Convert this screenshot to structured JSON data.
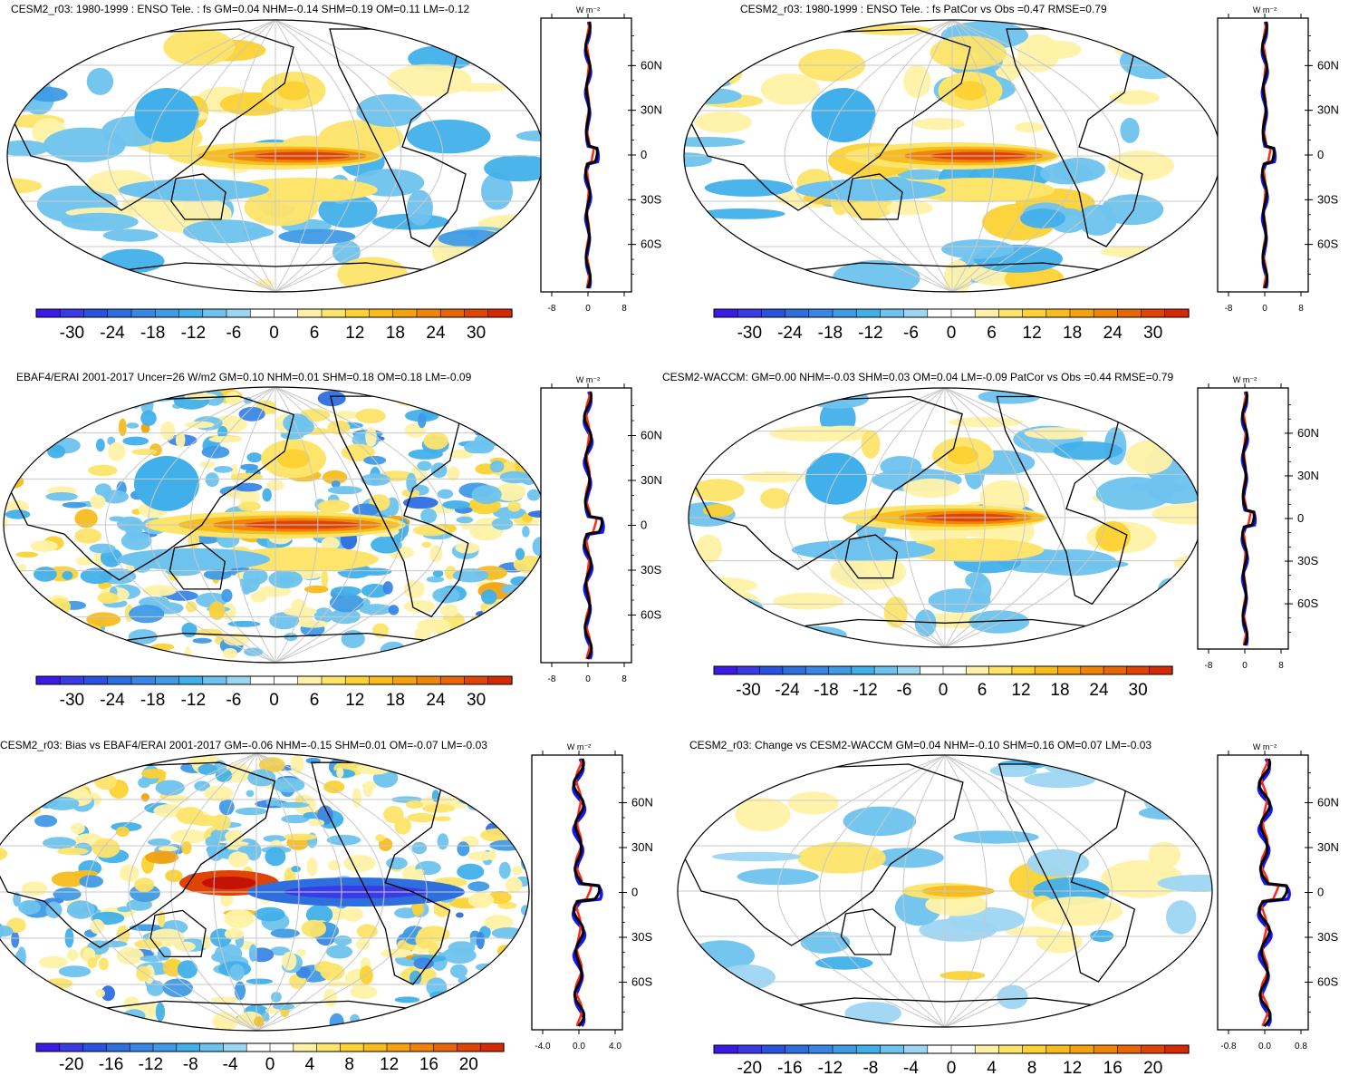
{
  "colors": {
    "negative_scale": [
      "#3a1ae6",
      "#3a3ae6",
      "#2a52e0",
      "#2e6fe0",
      "#3a86e6",
      "#3f9be6",
      "#41b0ea",
      "#6ec3ee",
      "#9dd6f2"
    ],
    "positive_scale": [
      "#fff2a8",
      "#fde46a",
      "#fcd234",
      "#f8bd1c",
      "#f4a20e",
      "#ef8409",
      "#e86607",
      "#df4406",
      "#d62a05",
      "#c41206"
    ],
    "ocean_red": "#ff2a1a",
    "line_blue": "#1414ff",
    "line_black": "#000000",
    "grid": "#c8c8c8"
  },
  "panels": [
    {
      "id": "p1",
      "title": "CESM2_r03: 1980-1999 : ENSO Tele. : fs GM=0.04 NHM=-0.14 SHM=0.19 OM=0.11 LM=-0.12",
      "colorbar_labels": [
        "-30",
        "-24",
        "-18",
        "-12",
        "-6",
        "0",
        "6",
        "12",
        "18",
        "24",
        "30"
      ],
      "zonal_x_ticks": [
        "-8",
        "0",
        "8"
      ],
      "zonal_y_ticks": [
        "60N",
        "30N",
        "0",
        "30S",
        "60S"
      ],
      "zonal_unit": "W m-2"
    },
    {
      "id": "p2",
      "title": "CESM2_r03: 1980-1999 : ENSO Tele. : fs PatCor vs Obs =0.47 RMSE=0.79",
      "colorbar_labels": [
        "-30",
        "-24",
        "-18",
        "-12",
        "-6",
        "0",
        "6",
        "12",
        "18",
        "24",
        "30"
      ],
      "zonal_x_ticks": [
        "-8",
        "0",
        "8"
      ],
      "zonal_y_ticks": [
        "60N",
        "30N",
        "0",
        "30S",
        "60S"
      ],
      "zonal_unit": "W m-2"
    },
    {
      "id": "p3",
      "title": "EBAF4/ERAI 2001-2017 Uncer=26 W/m2 GM=0.10 NHM=0.01 SHM=0.18 OM=0.18 LM=-0.09",
      "colorbar_labels": [
        "-30",
        "-24",
        "-18",
        "-12",
        "-6",
        "0",
        "6",
        "12",
        "18",
        "24",
        "30"
      ],
      "zonal_x_ticks": [
        "-8",
        "0",
        "8"
      ],
      "zonal_y_ticks": [
        "60N",
        "30N",
        "0",
        "30S",
        "60S"
      ],
      "zonal_unit": "W m-2"
    },
    {
      "id": "p4",
      "title": "CESM2-WACCM: GM=0.00 NHM=-0.03 SHM=0.03 OM=0.04 LM=-0.09 PatCor vs Obs =0.44 RMSE=0.79",
      "colorbar_labels": [
        "-30",
        "-24",
        "-18",
        "-12",
        "-6",
        "0",
        "6",
        "12",
        "18",
        "24",
        "30"
      ],
      "zonal_x_ticks": [
        "-8",
        "0",
        "8"
      ],
      "zonal_y_ticks": [
        "60N",
        "30N",
        "0",
        "30S",
        "60S"
      ],
      "zonal_unit": "W m-2"
    },
    {
      "id": "p5",
      "title": "CESM2_r03: Bias vs EBAF4/ERAI 2001-2017 GM=-0.06 NHM=-0.15 SHM=0.01 OM=-0.07 LM=-0.03",
      "colorbar_labels": [
        "-20",
        "-16",
        "-12",
        "-8",
        "-4",
        "0",
        "4",
        "8",
        "12",
        "16",
        "20"
      ],
      "zonal_x_ticks": [
        "-4.0",
        "0.0",
        "4.0"
      ],
      "zonal_y_ticks": [
        "60N",
        "30N",
        "0",
        "30S",
        "60S"
      ],
      "zonal_unit": "W m-2"
    },
    {
      "id": "p6",
      "title": "CESM2_r03: Change vs CESM2-WACCM GM=0.04 NHM=-0.10 SHM=0.16 OM=0.07 LM=-0.03",
      "colorbar_labels": [
        "-20",
        "-16",
        "-12",
        "-8",
        "-4",
        "0",
        "4",
        "8",
        "12",
        "16",
        "20"
      ],
      "zonal_x_ticks": [
        "-0.8",
        "0.0",
        "0.8"
      ],
      "zonal_y_ticks": [
        "60N",
        "30N",
        "0",
        "30S",
        "60S"
      ],
      "zonal_unit": "W m-2"
    }
  ],
  "chart_data": [
    {
      "type": "heatmap",
      "title": "CESM2_r03: 1980-1999 : ENSO Tele. : fs GM=0.04 NHM=-0.14 SHM=0.19 OM=0.11 LM=-0.12",
      "colorbar": [
        -30,
        -24,
        -18,
        -12,
        -6,
        0,
        6,
        12,
        18,
        24,
        30
      ],
      "zonal_mean": {
        "xlim": [
          -8,
          8
        ],
        "y_ticks": [
          "60N",
          "30N",
          "0",
          "30S",
          "60S"
        ],
        "series": [
          {
            "color": "red"
          },
          {
            "color": "blue"
          },
          {
            "color": "black"
          }
        ]
      }
    },
    {
      "type": "heatmap",
      "title": "CESM2_r03: 1980-1999 : ENSO Tele. : fs PatCor vs Obs =0.47 RMSE=0.79",
      "colorbar": [
        -30,
        -24,
        -18,
        -12,
        -6,
        0,
        6,
        12,
        18,
        24,
        30
      ],
      "zonal_mean": {
        "xlim": [
          -8,
          8
        ]
      }
    },
    {
      "type": "heatmap",
      "title": "EBAF4/ERAI 2001-2017 Uncer=26 W/m2 GM=0.10 NHM=0.01 SHM=0.18 OM=0.18 LM=-0.09",
      "colorbar": [
        -30,
        -24,
        -18,
        -12,
        -6,
        0,
        6,
        12,
        18,
        24,
        30
      ],
      "zonal_mean": {
        "xlim": [
          -8,
          8
        ]
      }
    },
    {
      "type": "heatmap",
      "title": "CESM2-WACCM: GM=0.00 NHM=-0.03 SHM=0.03 OM=0.04 LM=-0.09 PatCor vs Obs =0.44 RMSE=0.79",
      "colorbar": [
        -30,
        -24,
        -18,
        -12,
        -6,
        0,
        6,
        12,
        18,
        24,
        30
      ],
      "zonal_mean": {
        "xlim": [
          -8,
          8
        ]
      }
    },
    {
      "type": "heatmap",
      "title": "CESM2_r03: Bias vs EBAF4/ERAI 2001-2017 GM=-0.06 NHM=-0.15 SHM=0.01 OM=-0.07 LM=-0.03",
      "colorbar": [
        -20,
        -16,
        -12,
        -8,
        -4,
        0,
        4,
        8,
        12,
        16,
        20
      ],
      "zonal_mean": {
        "xlim": [
          -4,
          4
        ]
      }
    },
    {
      "type": "heatmap",
      "title": "CESM2_r03: Change vs CESM2-WACCM GM=0.04 NHM=-0.10 SHM=0.16 OM=0.07 LM=-0.03",
      "colorbar": [
        -20,
        -16,
        -12,
        -8,
        -4,
        0,
        4,
        8,
        12,
        16,
        20
      ],
      "zonal_mean": {
        "xlim": [
          -0.8,
          0.8
        ]
      }
    }
  ]
}
